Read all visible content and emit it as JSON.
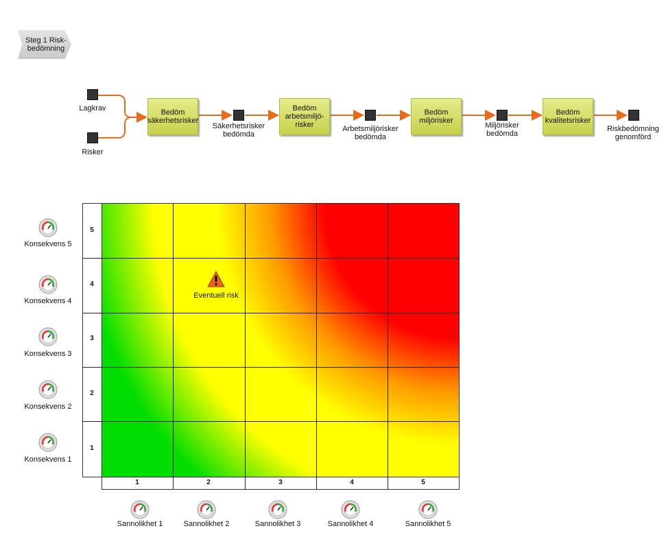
{
  "step_tag": {
    "label": "Steg 1 Risk-bedömning"
  },
  "process": {
    "inputs": [
      {
        "label": "Lagkrav"
      },
      {
        "label": "Risker"
      }
    ],
    "activities": [
      {
        "label": "Bedöm\nsäkerhetsrisker"
      },
      {
        "label": "Bedöm\narbetsmiljö-\nrisker"
      },
      {
        "label": "Bedöm\nmiljörisker"
      },
      {
        "label": "Bedöm\nkvalitetsrisker"
      }
    ],
    "events": [
      {
        "label": "Säkerhetsrisker\nbedömda"
      },
      {
        "label": "Arbetsmiljörisker\nbedömda"
      },
      {
        "label": "Miljörisker\nbedömda"
      },
      {
        "label": "Riskbedömning\ngenomförd"
      }
    ]
  },
  "matrix": {
    "row_numbers": [
      "5",
      "4",
      "3",
      "2",
      "1"
    ],
    "col_numbers": [
      "1",
      "2",
      "3",
      "4",
      "5"
    ],
    "consequence_labels": [
      "Konsekvens 5",
      "Konsekvens 4",
      "Konsekvens 3",
      "Konsekvens 2",
      "Konsekvens 1"
    ],
    "probability_labels": [
      "Sannolikhet 1",
      "Sannolikhet 2",
      "Sannolikhet 3",
      "Sannolikhet 4",
      "Sannolikhet 5"
    ],
    "risk_marker": {
      "label": "Eventuell risk",
      "consequence": 4,
      "probability": 2
    },
    "colors": {
      "low": "#00dd00",
      "medium": "#ffff00",
      "high": "#ff0000",
      "arrow": "#e86a1c"
    }
  }
}
